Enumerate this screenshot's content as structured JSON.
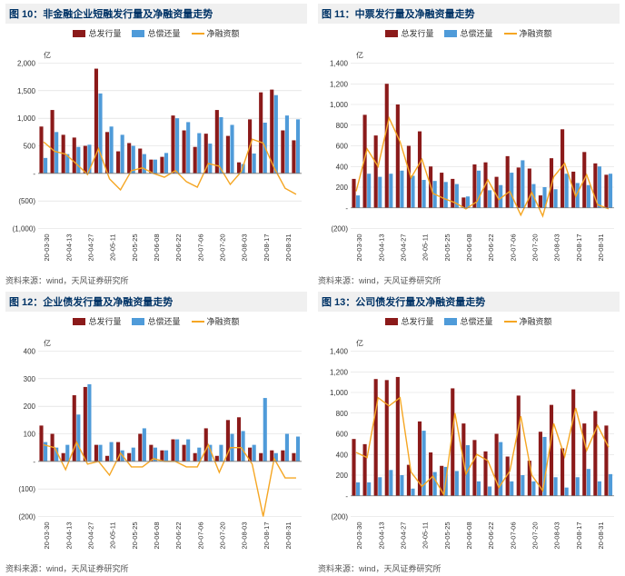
{
  "colors": {
    "bar_issuance": "#8b1a1a",
    "bar_repay": "#4f9bd9",
    "line_net": "#f5a623",
    "grid": "#d9d9d9",
    "axis": "#777777",
    "title_bg": "#f0f0f0",
    "title_fg": "#003366",
    "source_fg": "#555555"
  },
  "legend_labels": {
    "issuance": "总发行量",
    "repay": "总偿还量",
    "net": "净融资额"
  },
  "unit_label": "亿",
  "source_text": "资料来源：wind，天风证券研究所",
  "categories": [
    "20-03-30",
    "20-04-13",
    "20-04-27",
    "20-05-11",
    "20-05-25",
    "20-06-08",
    "20-06-22",
    "20-07-06",
    "20-07-20",
    "20-08-03",
    "20-08-17",
    "20-08-31"
  ],
  "panels": [
    {
      "id": "c10",
      "title": "图 10：非金融企业短融发行量及净融资量走势",
      "ylim": [
        -1000,
        2000
      ],
      "ystep": 500,
      "y_tick_fmt": "paren_neg",
      "series": {
        "issuance": [
          850,
          1150,
          700,
          650,
          500,
          1900,
          750,
          400,
          550,
          450,
          250,
          300,
          1050,
          780,
          480,
          720,
          1150,
          680,
          200,
          980,
          1470,
          1520,
          780,
          600
        ],
        "repay": [
          280,
          750,
          350,
          480,
          520,
          1450,
          850,
          700,
          500,
          350,
          250,
          370,
          1000,
          930,
          730,
          540,
          1020,
          880,
          170,
          360,
          920,
          1420,
          1050,
          980
        ],
        "net": [
          570,
          400,
          350,
          170,
          -20,
          450,
          -100,
          -300,
          50,
          100,
          0,
          -70,
          50,
          -150,
          -250,
          180,
          130,
          -200,
          30,
          620,
          550,
          100,
          -270,
          -380
        ]
      }
    },
    {
      "id": "c11",
      "title": "图 11：中票发行量及净融资量走势",
      "ylim": [
        -200,
        1400
      ],
      "ystep": 200,
      "y_tick_fmt": "paren_neg",
      "series": {
        "issuance": [
          280,
          900,
          700,
          1200,
          1000,
          600,
          740,
          400,
          340,
          280,
          100,
          420,
          440,
          300,
          500,
          390,
          380,
          120,
          480,
          760,
          350,
          540,
          430,
          320
        ],
        "repay": [
          120,
          330,
          300,
          330,
          360,
          310,
          270,
          260,
          250,
          230,
          110,
          360,
          170,
          220,
          340,
          460,
          230,
          200,
          180,
          330,
          240,
          220,
          400,
          330
        ],
        "net": [
          160,
          570,
          400,
          870,
          640,
          290,
          470,
          140,
          90,
          50,
          -10,
          60,
          270,
          80,
          160,
          -70,
          150,
          -80,
          300,
          430,
          110,
          320,
          30,
          -10
        ]
      }
    },
    {
      "id": "c12",
      "title": "图 12：企业债发行量及净融资量走势",
      "ylim": [
        -200,
        400
      ],
      "ystep": 100,
      "y_tick_fmt": "paren_neg",
      "series": {
        "issuance": [
          130,
          100,
          30,
          240,
          270,
          60,
          20,
          70,
          30,
          100,
          60,
          40,
          80,
          60,
          30,
          120,
          20,
          150,
          160,
          50,
          30,
          40,
          40,
          30
        ],
        "repay": [
          70,
          50,
          60,
          170,
          280,
          60,
          70,
          40,
          50,
          120,
          50,
          40,
          80,
          80,
          50,
          60,
          60,
          100,
          110,
          60,
          230,
          30,
          100,
          90
        ],
        "net": [
          60,
          50,
          -30,
          70,
          -10,
          0,
          -50,
          30,
          -20,
          -20,
          10,
          0,
          0,
          -20,
          -20,
          60,
          -40,
          50,
          50,
          -10,
          -200,
          10,
          -60,
          -60
        ]
      }
    },
    {
      "id": "c13",
      "title": "图 13：公司债发行量及净融资量走势",
      "ylim": [
        -200,
        1400
      ],
      "ystep": 200,
      "y_tick_fmt": "paren_neg",
      "series": {
        "issuance": [
          550,
          500,
          1130,
          1120,
          1150,
          300,
          720,
          420,
          290,
          1040,
          700,
          540,
          430,
          600,
          380,
          970,
          340,
          620,
          880,
          460,
          1030,
          700,
          820,
          680
        ],
        "repay": [
          130,
          130,
          180,
          250,
          200,
          70,
          630,
          230,
          280,
          240,
          490,
          140,
          90,
          520,
          140,
          200,
          140,
          570,
          180,
          80,
          180,
          260,
          140,
          210
        ],
        "net": [
          420,
          370,
          950,
          870,
          950,
          230,
          90,
          190,
          10,
          800,
          210,
          400,
          340,
          80,
          240,
          770,
          200,
          50,
          700,
          380,
          850,
          440,
          680,
          470
        ]
      }
    }
  ]
}
